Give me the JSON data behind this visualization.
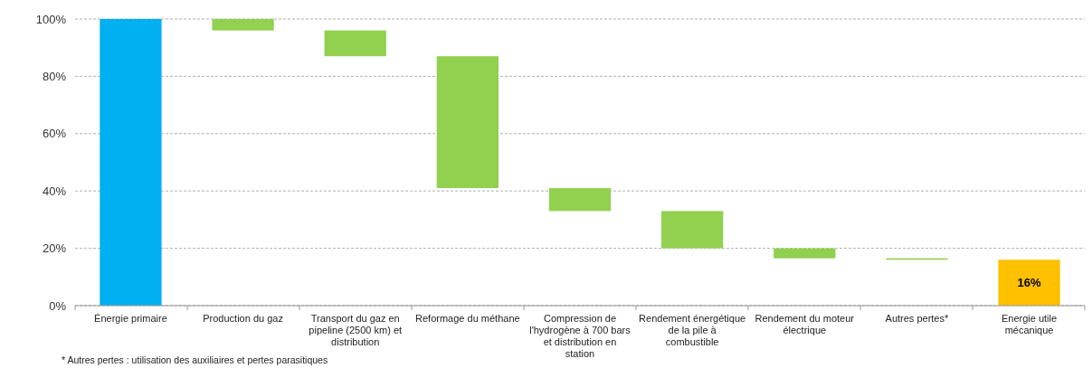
{
  "chart_data": {
    "type": "bar",
    "categories": [
      "Énergie primaire",
      "Production du gaz",
      "Transport du gaz en pipeline (2500 km) et distribution",
      "Reformage du méthane",
      "Compression de l'hydrogène à 700 bars et distribution en station",
      "Rendement énergétique de la pile à combustible",
      "Rendement du moteur électrique",
      "Autres pertes*",
      "Energie utile mécanique"
    ],
    "values": [
      100,
      4,
      9,
      46,
      8,
      13,
      3.5,
      0.5,
      16
    ],
    "base": [
      0,
      96,
      87,
      41,
      33,
      20,
      16.5,
      16,
      0
    ],
    "colors": [
      "#00b0f0",
      "#92d050",
      "#92d050",
      "#92d050",
      "#92d050",
      "#92d050",
      "#92d050",
      "#92d050",
      "#ffc000"
    ],
    "value_labels": [
      null,
      null,
      null,
      null,
      null,
      null,
      null,
      null,
      "16%"
    ],
    "ylim": [
      0,
      100
    ],
    "yticks": [
      {
        "value": 0,
        "label": "0%"
      },
      {
        "value": 20,
        "label": "20%"
      },
      {
        "value": 40,
        "label": "40%"
      },
      {
        "value": 60,
        "label": "60%"
      },
      {
        "value": 80,
        "label": "80%"
      },
      {
        "value": 100,
        "label": "100%"
      }
    ],
    "grid": "y",
    "annotations": [
      "* Autres pertes : utilisation des auxiliaires et pertes parasitiques"
    ]
  }
}
